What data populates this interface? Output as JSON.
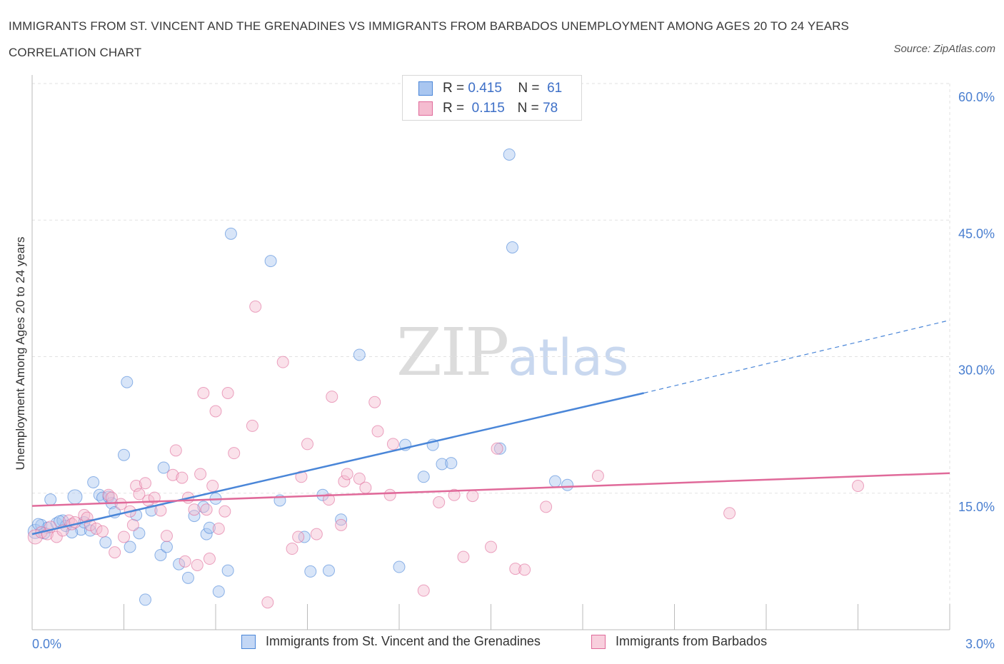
{
  "title": "IMMIGRANTS FROM ST. VINCENT AND THE GRENADINES VS IMMIGRANTS FROM BARBADOS UNEMPLOYMENT AMONG AGES 20 TO 24 YEARS CORRELATION CHART",
  "source": "Source: ZipAtlas.com",
  "watermark": {
    "zip": "ZIP",
    "atlas": "atlas"
  },
  "legend": {
    "rows": [
      {
        "r_label": "R =",
        "r_value": "0.415",
        "n_label": "N =",
        "n_value": "61",
        "color": "#a9c6f0"
      },
      {
        "r_label": "R =",
        "r_value": "0.115",
        "n_label": "N =",
        "n_value": "78",
        "color": "#f5bcd0"
      }
    ]
  },
  "bottom_legend": [
    {
      "label": "Immigrants from St. Vincent and the Grenadines",
      "color": "#a9c6f0"
    },
    {
      "label": "Immigrants from Barbados",
      "color": "#f5bcd0"
    }
  ],
  "chart_data": {
    "type": "scatter",
    "title": "IMMIGRANTS FROM ST. VINCENT AND THE GRENADINES VS IMMIGRANTS FROM BARBADOS UNEMPLOYMENT AMONG AGES 20 TO 24 YEARS CORRELATION CHART",
    "xlabel": "",
    "ylabel": "Unemployment Among Ages 20 to 24 years",
    "xlim": [
      0,
      3.0
    ],
    "ylim": [
      0,
      60
    ],
    "x_tick_labels": [
      "0.0%",
      "3.0%"
    ],
    "y_tick_labels": [
      "15.0%",
      "30.0%",
      "45.0%",
      "60.0%"
    ],
    "y_ticks": [
      15,
      30,
      45,
      60
    ],
    "grid": true,
    "legend_position": "top-center",
    "series": [
      {
        "name": "Immigrants from St. Vincent and the Grenadines",
        "color": "#4a86d8",
        "fill": "#a9c6f0",
        "trend": {
          "x": [
            0.0,
            2.0
          ],
          "y": [
            10.5,
            26.0
          ],
          "dashed_to": {
            "x": 3.0,
            "y": 34.0
          }
        },
        "points": [
          [
            0.01,
            10.8
          ],
          [
            0.03,
            11.5
          ],
          [
            0.05,
            11.2
          ],
          [
            0.06,
            14.3
          ],
          [
            0.08,
            11.7
          ],
          [
            0.1,
            12.0
          ],
          [
            0.11,
            11.4
          ],
          [
            0.14,
            14.6
          ],
          [
            0.16,
            11.0
          ],
          [
            0.17,
            11.8
          ],
          [
            0.19,
            10.9
          ],
          [
            0.2,
            16.2
          ],
          [
            0.22,
            14.8
          ],
          [
            0.23,
            14.5
          ],
          [
            0.24,
            9.6
          ],
          [
            0.25,
            14.6
          ],
          [
            0.26,
            13.9
          ],
          [
            0.27,
            12.9
          ],
          [
            0.3,
            19.2
          ],
          [
            0.31,
            27.2
          ],
          [
            0.32,
            9.1
          ],
          [
            0.34,
            12.6
          ],
          [
            0.35,
            10.6
          ],
          [
            0.39,
            13.1
          ],
          [
            0.42,
            8.2
          ],
          [
            0.43,
            17.8
          ],
          [
            0.44,
            9.1
          ],
          [
            0.48,
            7.2
          ],
          [
            0.51,
            5.7
          ],
          [
            0.53,
            12.5
          ],
          [
            0.56,
            13.5
          ],
          [
            0.57,
            10.5
          ],
          [
            0.58,
            11.2
          ],
          [
            0.6,
            14.4
          ],
          [
            0.61,
            4.2
          ],
          [
            0.64,
            6.5
          ],
          [
            0.65,
            43.5
          ],
          [
            0.78,
            40.5
          ],
          [
            0.81,
            14.2
          ],
          [
            0.89,
            10.2
          ],
          [
            0.91,
            6.4
          ],
          [
            0.95,
            14.8
          ],
          [
            0.97,
            6.5
          ],
          [
            1.01,
            12.1
          ],
          [
            1.07,
            30.2
          ],
          [
            1.2,
            6.9
          ],
          [
            1.22,
            20.3
          ],
          [
            1.28,
            16.8
          ],
          [
            1.31,
            20.3
          ],
          [
            1.34,
            18.2
          ],
          [
            1.37,
            18.3
          ],
          [
            1.53,
            19.9
          ],
          [
            1.56,
            52.2
          ],
          [
            1.57,
            42.0
          ],
          [
            1.71,
            16.3
          ],
          [
            1.75,
            15.9
          ],
          [
            0.37,
            3.3
          ],
          [
            0.09,
            11.9
          ],
          [
            0.13,
            10.7
          ],
          [
            0.02,
            11.6
          ],
          [
            0.04,
            10.6
          ]
        ]
      },
      {
        "name": "Immigrants from Barbados",
        "color": "#e06a9a",
        "fill": "#f5bcd0",
        "trend": {
          "x": [
            0.0,
            3.0
          ],
          "y": [
            13.6,
            17.2
          ]
        },
        "points": [
          [
            0.01,
            10.2
          ],
          [
            0.03,
            10.7
          ],
          [
            0.05,
            10.5
          ],
          [
            0.06,
            11.3
          ],
          [
            0.08,
            10.2
          ],
          [
            0.1,
            10.9
          ],
          [
            0.12,
            12.0
          ],
          [
            0.13,
            11.6
          ],
          [
            0.14,
            11.8
          ],
          [
            0.17,
            12.6
          ],
          [
            0.18,
            12.3
          ],
          [
            0.19,
            11.5
          ],
          [
            0.21,
            11.1
          ],
          [
            0.23,
            10.8
          ],
          [
            0.25,
            14.8
          ],
          [
            0.26,
            14.5
          ],
          [
            0.27,
            8.5
          ],
          [
            0.29,
            13.8
          ],
          [
            0.3,
            10.2
          ],
          [
            0.32,
            13.0
          ],
          [
            0.33,
            11.5
          ],
          [
            0.34,
            15.8
          ],
          [
            0.35,
            14.9
          ],
          [
            0.37,
            16.1
          ],
          [
            0.38,
            14.2
          ],
          [
            0.4,
            14.5
          ],
          [
            0.42,
            13.1
          ],
          [
            0.44,
            10.3
          ],
          [
            0.46,
            17.0
          ],
          [
            0.47,
            19.7
          ],
          [
            0.49,
            16.7
          ],
          [
            0.5,
            7.5
          ],
          [
            0.51,
            14.5
          ],
          [
            0.53,
            13.2
          ],
          [
            0.54,
            7.1
          ],
          [
            0.55,
            17.1
          ],
          [
            0.56,
            26.0
          ],
          [
            0.57,
            13.2
          ],
          [
            0.58,
            7.8
          ],
          [
            0.59,
            15.8
          ],
          [
            0.6,
            24.0
          ],
          [
            0.61,
            11.1
          ],
          [
            0.63,
            13.0
          ],
          [
            0.64,
            26.0
          ],
          [
            0.66,
            19.4
          ],
          [
            0.72,
            22.4
          ],
          [
            0.73,
            35.5
          ],
          [
            0.77,
            3.0
          ],
          [
            0.82,
            29.4
          ],
          [
            0.85,
            8.9
          ],
          [
            0.87,
            10.2
          ],
          [
            0.88,
            16.8
          ],
          [
            0.9,
            20.4
          ],
          [
            0.93,
            10.5
          ],
          [
            0.97,
            14.3
          ],
          [
            0.98,
            25.6
          ],
          [
            1.01,
            11.5
          ],
          [
            1.02,
            16.3
          ],
          [
            1.03,
            17.1
          ],
          [
            1.07,
            16.6
          ],
          [
            1.09,
            15.6
          ],
          [
            1.12,
            25.0
          ],
          [
            1.13,
            21.8
          ],
          [
            1.17,
            14.8
          ],
          [
            1.18,
            20.4
          ],
          [
            1.28,
            4.3
          ],
          [
            1.33,
            14.0
          ],
          [
            1.38,
            14.8
          ],
          [
            1.41,
            8.0
          ],
          [
            1.44,
            14.7
          ],
          [
            1.5,
            9.1
          ],
          [
            1.58,
            6.7
          ],
          [
            1.61,
            6.6
          ],
          [
            1.68,
            13.5
          ],
          [
            1.85,
            16.9
          ],
          [
            2.28,
            12.8
          ],
          [
            2.7,
            15.8
          ],
          [
            1.52,
            19.9
          ]
        ]
      }
    ]
  }
}
